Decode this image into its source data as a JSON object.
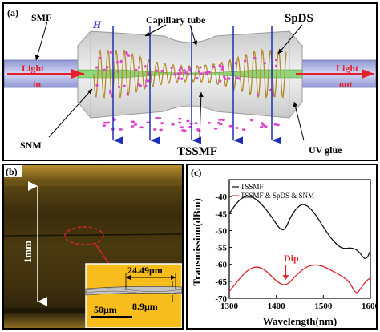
{
  "panel_a": {
    "tag": "(a)",
    "labels": {
      "smf": "SMF",
      "h": "H",
      "capillary": "Capillary tube",
      "spds": "SpDS",
      "light_in_1": "Light",
      "light_in_2": "in",
      "light_out_1": "Light",
      "light_out_2": "out",
      "snm": "SNM",
      "tssmf": "TSSMF",
      "uv_glue": "UV glue"
    },
    "colors": {
      "fiber": "#b8bde6",
      "tube": "#dcdcdc",
      "field_arrow": "#1f2fb5",
      "light_arrow": "#e5202a",
      "nanoparticle": "#e040d0",
      "spring": "#b58a2a"
    }
  },
  "panel_b": {
    "tag": "(b)",
    "scale_vertical": "1mm",
    "inset_width_label": "24.49μm",
    "inset_height_label": "8.9μm",
    "inset_scalebar": "50μm"
  },
  "chart_data": {
    "type": "line",
    "tag": "(c)",
    "xlabel": "Wavelength(nm)",
    "ylabel": "Transmission(dBm)",
    "xlim": [
      1300,
      1600
    ],
    "ylim": [
      -70,
      -35
    ],
    "xticks": [
      1300,
      1400,
      1500,
      1600
    ],
    "yticks": [
      -70,
      -65,
      -60,
      -55,
      -50,
      -45,
      -40
    ],
    "legend_position": "top-left",
    "annotation": "Dip",
    "series": [
      {
        "name": "TSSMF",
        "color": "#111111",
        "x": [
          1300,
          1320,
          1340,
          1360,
          1380,
          1395,
          1410,
          1420,
          1430,
          1445,
          1460,
          1480,
          1500,
          1520,
          1540,
          1560,
          1575,
          1590,
          1600
        ],
        "y": [
          -45,
          -41,
          -39.5,
          -41,
          -44,
          -47,
          -50,
          -49.5,
          -46,
          -43,
          -42,
          -44.5,
          -49,
          -53,
          -55.5,
          -55,
          -56,
          -59,
          -56
        ]
      },
      {
        "name": "TSSMF & SpDS & SNM",
        "color": "#e0242c",
        "x": [
          1300,
          1320,
          1340,
          1360,
          1380,
          1400,
          1420,
          1440,
          1460,
          1480,
          1500,
          1520,
          1540,
          1555,
          1570,
          1580,
          1590,
          1600
        ],
        "y": [
          -68,
          -64.5,
          -61.5,
          -60.5,
          -62,
          -65,
          -66.5,
          -63.5,
          -61,
          -60,
          -60.5,
          -62,
          -63.5,
          -65,
          -69,
          -67,
          -65,
          -64
        ]
      }
    ]
  }
}
